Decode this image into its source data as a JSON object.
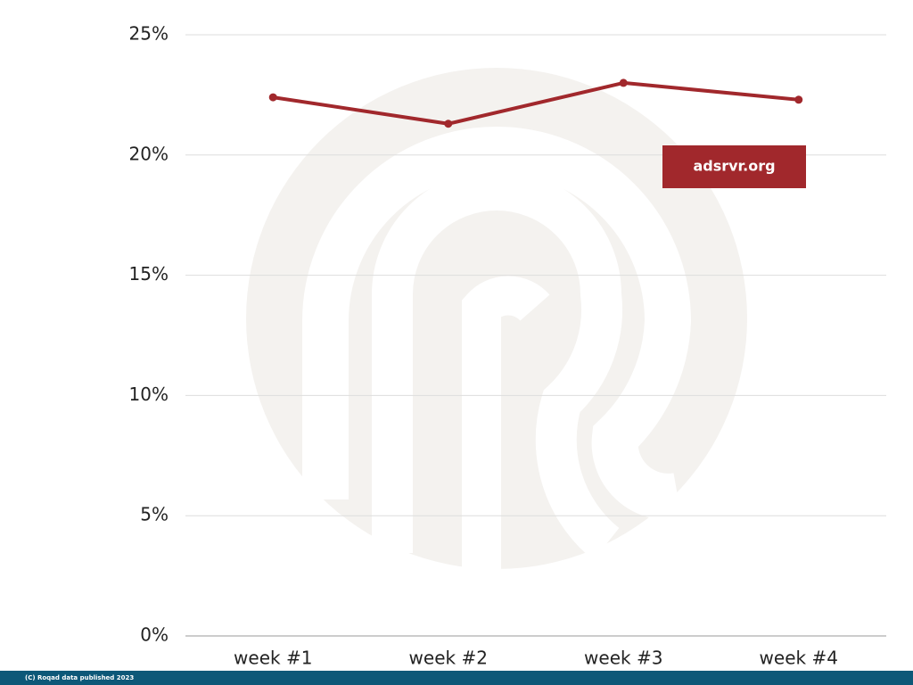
{
  "chart_data": {
    "type": "line",
    "categories": [
      "week #1",
      "week #2",
      "week #3",
      "week #4"
    ],
    "series": [
      {
        "name": "adsrvr.org",
        "color": "#a1282c",
        "values": [
          22.4,
          21.3,
          23.0,
          22.3
        ]
      }
    ],
    "ylim": [
      0,
      25
    ],
    "yticks": [
      {
        "value": 0,
        "label": "0%"
      },
      {
        "value": 5,
        "label": "5%"
      },
      {
        "value": 10,
        "label": "10%"
      },
      {
        "value": 15,
        "label": "15%"
      },
      {
        "value": 20,
        "label": "20%"
      },
      {
        "value": 25,
        "label": "25%"
      }
    ],
    "grid": true,
    "footer": "(C) Roqad data published 2023"
  }
}
